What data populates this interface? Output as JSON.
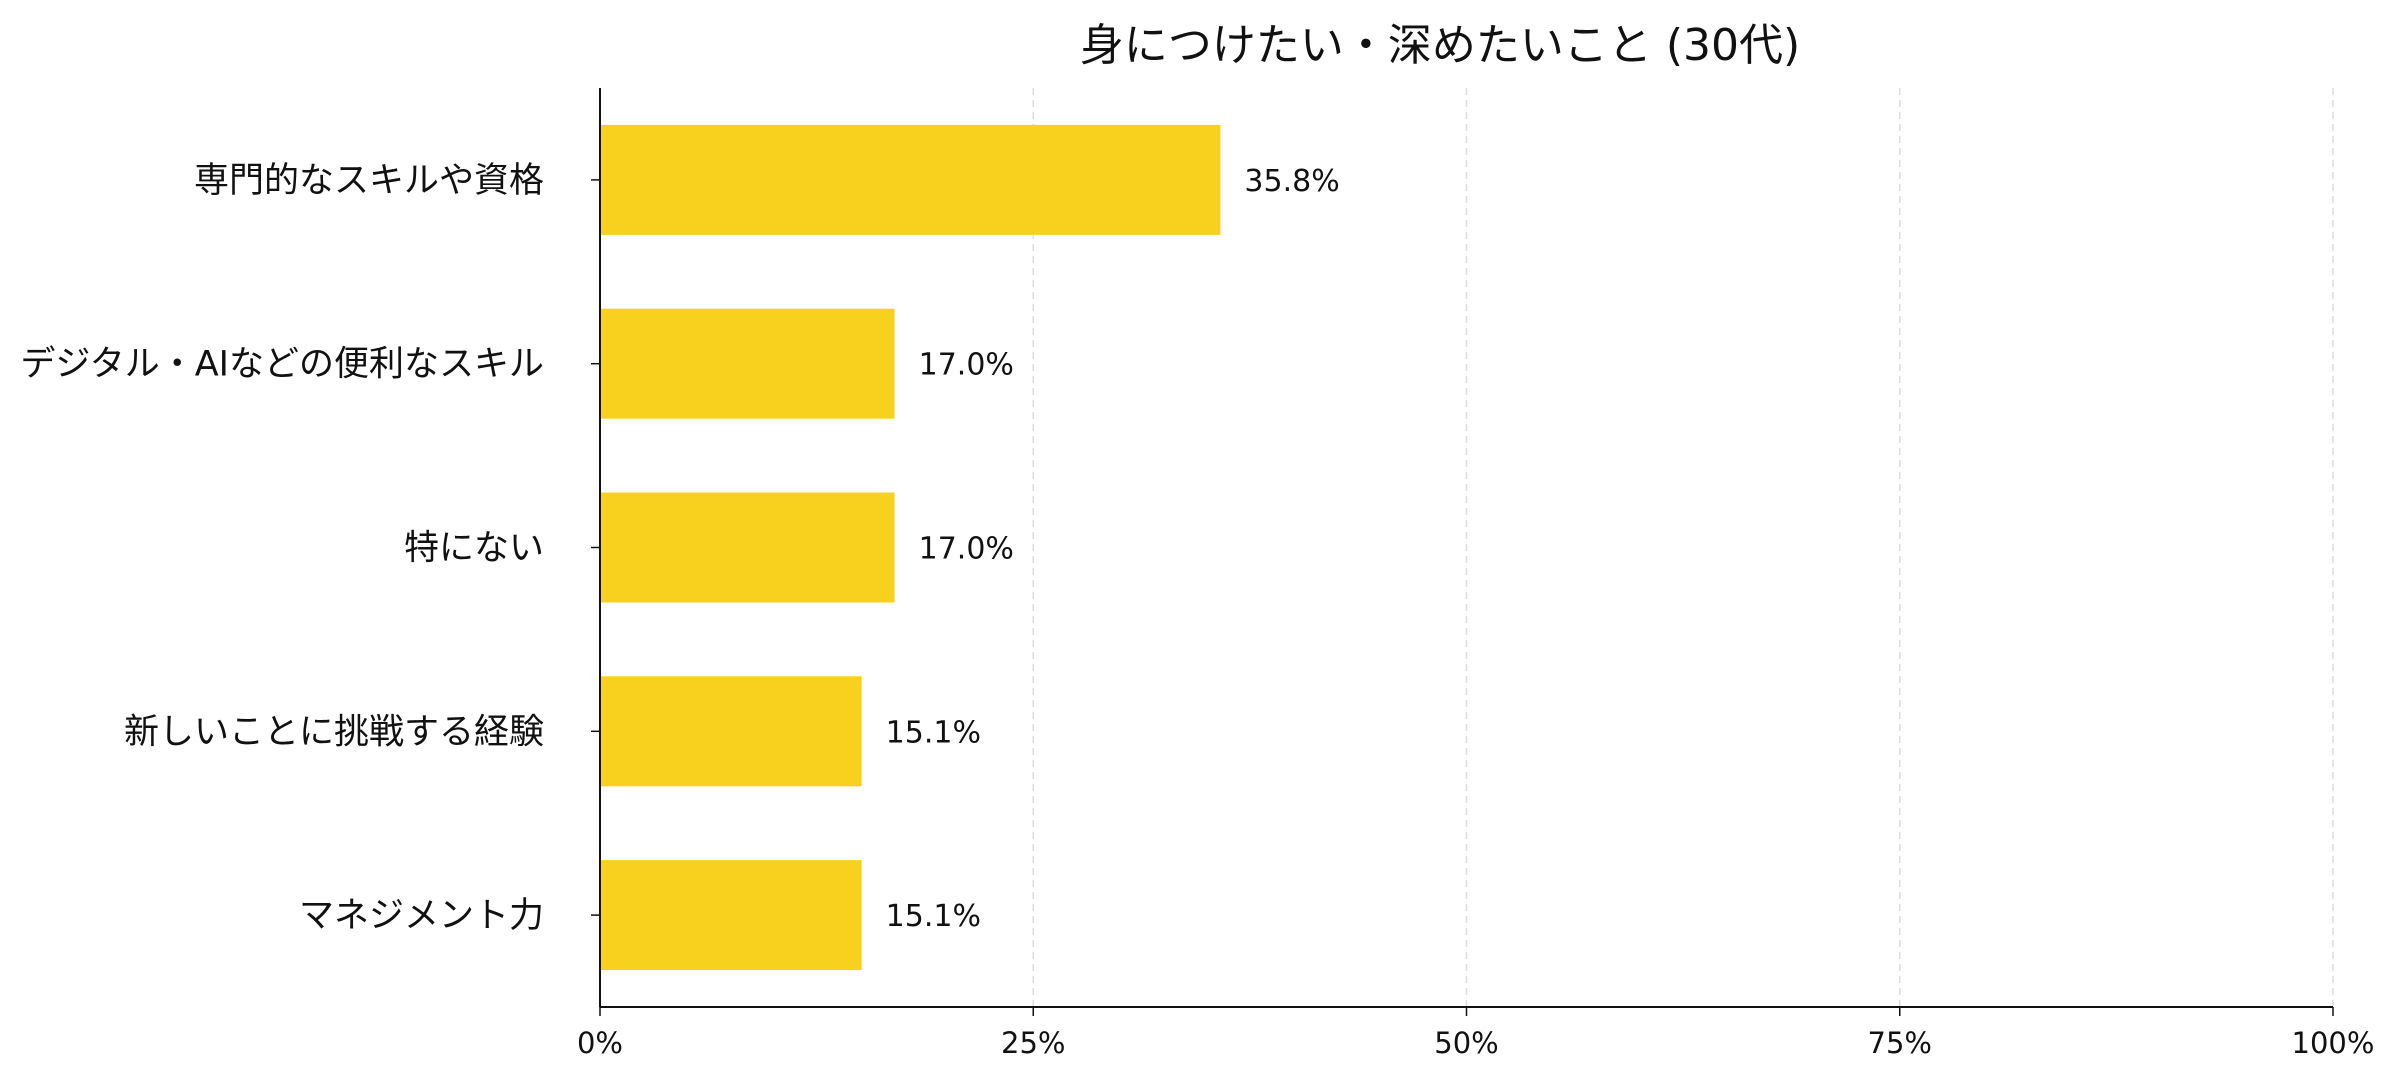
{
  "chart_data": {
    "type": "bar",
    "orientation": "horizontal",
    "title": "身につけたい・深めたいこと (30代)",
    "xlabel": "",
    "ylabel": "",
    "categories": [
      "専門的なスキルや資格",
      "デジタル・AIなどの便利なスキル",
      "特にない",
      "新しいことに挑戦する経験",
      "マネジメント力"
    ],
    "values": [
      35.8,
      17.0,
      17.0,
      15.1,
      15.1
    ],
    "value_labels": [
      "35.8%",
      "17.0%",
      "17.0%",
      "15.1%",
      "15.1%"
    ],
    "xlim": [
      0,
      100
    ],
    "x_ticks": [
      0,
      25,
      50,
      75,
      100
    ],
    "x_tick_labels": [
      "0%",
      "25%",
      "50%",
      "75%",
      "100%"
    ],
    "grid": "vertical dashed",
    "legend": "none",
    "colors": {
      "bar": "#F7D11E",
      "axis": "#111111",
      "grid": "#dddddd",
      "text": "#111111"
    }
  }
}
